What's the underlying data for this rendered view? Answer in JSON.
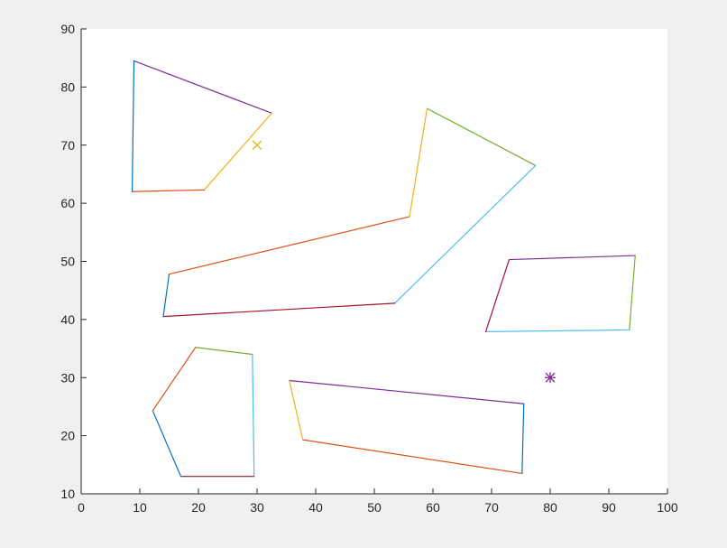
{
  "chart_data": {
    "type": "line",
    "title": "",
    "xlabel": "",
    "ylabel": "",
    "xlim": [
      0,
      100
    ],
    "ylim": [
      10,
      90
    ],
    "x_ticks": [
      0,
      10,
      20,
      30,
      40,
      50,
      60,
      70,
      80,
      90,
      100
    ],
    "y_ticks": [
      10,
      20,
      30,
      40,
      50,
      60,
      70,
      80,
      90
    ],
    "grid": false,
    "colors": {
      "blue": "#0072BD",
      "orange": "#D95319",
      "yellow": "#EDB120",
      "purple": "#7E2F8E",
      "green": "#77AC30",
      "cyan": "#4DBEEE",
      "red": "#A2142F"
    },
    "polygons": [
      {
        "vertices": [
          [
            9,
            84.5
          ],
          [
            32.5,
            75.5
          ],
          [
            21,
            62.3
          ],
          [
            8.7,
            62
          ]
        ],
        "edge_colors": [
          "purple",
          "yellow",
          "orange",
          "blue"
        ]
      },
      {
        "vertices": [
          [
            59,
            76.3
          ],
          [
            77.5,
            66.5
          ],
          [
            53.5,
            42.8
          ],
          [
            14,
            40.5
          ],
          [
            15,
            47.8
          ],
          [
            56,
            57.7
          ]
        ],
        "edge_colors": [
          "green",
          "cyan",
          "red",
          "blue",
          "orange",
          "yellow"
        ]
      },
      {
        "vertices": [
          [
            73,
            50.3
          ],
          [
            94.5,
            51
          ],
          [
            93.5,
            38.2
          ],
          [
            69,
            37.9
          ]
        ],
        "edge_colors": [
          "purple",
          "green",
          "cyan",
          "red"
        ]
      },
      {
        "vertices": [
          [
            19.5,
            35.2
          ],
          [
            29.2,
            34
          ],
          [
            29.5,
            13
          ],
          [
            17,
            13
          ],
          [
            12.2,
            24.3
          ]
        ],
        "edge_colors": [
          "green",
          "cyan",
          "red",
          "blue",
          "orange"
        ]
      },
      {
        "vertices": [
          [
            35.5,
            29.5
          ],
          [
            75.5,
            25.5
          ],
          [
            75.2,
            13.5
          ],
          [
            37.8,
            19.3
          ]
        ],
        "edge_colors": [
          "purple",
          "blue",
          "orange",
          "yellow"
        ]
      }
    ],
    "markers": [
      {
        "type": "x",
        "x": 30,
        "y": 70,
        "color": "yellow"
      },
      {
        "type": "asterisk",
        "x": 80,
        "y": 30,
        "color": "purple"
      }
    ]
  }
}
